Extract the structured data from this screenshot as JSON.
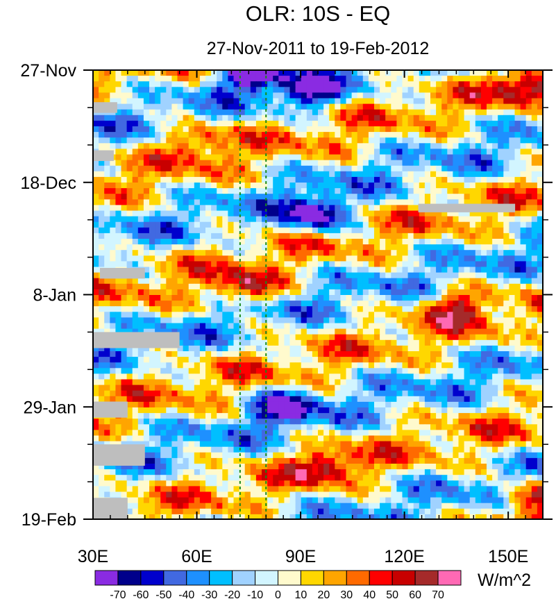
{
  "chart_data": {
    "type": "heatmap",
    "title": "OLR: 10S - EQ",
    "subtitle": "27-Nov-2011 to 19-Feb-2012",
    "xlabel": "",
    "ylabel": "",
    "x_range": [
      30,
      160
    ],
    "x_ticks": [
      {
        "value": 30,
        "label": "30E"
      },
      {
        "value": 60,
        "label": "60E"
      },
      {
        "value": 90,
        "label": "90E"
      },
      {
        "value": 120,
        "label": "120E"
      },
      {
        "value": 150,
        "label": "150E"
      }
    ],
    "y_range_days": [
      0,
      84
    ],
    "y_ticks": [
      {
        "value": 0,
        "label": "27-Nov"
      },
      {
        "value": 21,
        "label": "18-Dec"
      },
      {
        "value": 42,
        "label": "8-Jan"
      },
      {
        "value": 63,
        "label": "29-Jan"
      },
      {
        "value": 84,
        "label": "19-Feb"
      }
    ],
    "reference_lines_lon": [
      72.5,
      80
    ],
    "colorbar": {
      "units": "W/m^2",
      "levels": [
        -70,
        -60,
        -50,
        -40,
        -30,
        -20,
        -10,
        0,
        10,
        20,
        30,
        40,
        50,
        60,
        70
      ],
      "colors": [
        "#8a2be2",
        "#00008b",
        "#0000cd",
        "#4169e1",
        "#1e90ff",
        "#00bfff",
        "#a0d2ff",
        "#d2f5ff",
        "#fffacd",
        "#ffd700",
        "#ffa500",
        "#ff6a00",
        "#ff0000",
        "#c80000",
        "#a52a2a",
        "#ff69b4"
      ]
    },
    "features": [
      {
        "lon": 75,
        "day": 0.5,
        "value": -70,
        "note": "strong convection near 75E, late Nov"
      },
      {
        "lon": 93,
        "day": 4,
        "value": -55,
        "note": "deep convection near 93E"
      },
      {
        "lon": 60,
        "day": 13,
        "value": 35,
        "note": "positive anomaly 50-70E early Dec"
      },
      {
        "lon": 95,
        "day": 27,
        "value": -70,
        "note": "strong convection near 95E mid-Dec"
      },
      {
        "lon": 74,
        "day": 41,
        "value": 50,
        "note": "positive anomaly near 75E early Jan"
      },
      {
        "lon": 134,
        "day": 44,
        "value": 45,
        "note": "positive anomaly near 135E"
      },
      {
        "lon": 85,
        "day": 63,
        "value": -55,
        "note": "convection 80-95E late Jan"
      },
      {
        "lon": 98,
        "day": 74,
        "value": 40,
        "note": "positive anomaly near 100E Feb"
      },
      {
        "lon": 157,
        "day": 80,
        "value": 60,
        "note": "positive anomaly near 157E"
      },
      {
        "lon": 155,
        "day": 3,
        "value": 45,
        "note": "positive anomaly near 155E late Nov"
      }
    ],
    "missing_regions": [
      {
        "lon": [
          30,
          37
        ],
        "day": [
          6,
          8
        ]
      },
      {
        "lon": [
          30,
          36
        ],
        "day": [
          15,
          17
        ]
      },
      {
        "lon": [
          124,
          152
        ],
        "day": [
          25,
          26.6
        ]
      },
      {
        "lon": [
          32,
          45
        ],
        "day": [
          37,
          39
        ]
      },
      {
        "lon": [
          30,
          55
        ],
        "day": [
          49,
          52
        ]
      },
      {
        "lon": [
          30,
          40
        ],
        "day": [
          62,
          65
        ]
      },
      {
        "lon": [
          30,
          45
        ],
        "day": [
          70,
          74
        ]
      },
      {
        "lon": [
          30,
          40
        ],
        "day": [
          80,
          84
        ]
      }
    ]
  }
}
